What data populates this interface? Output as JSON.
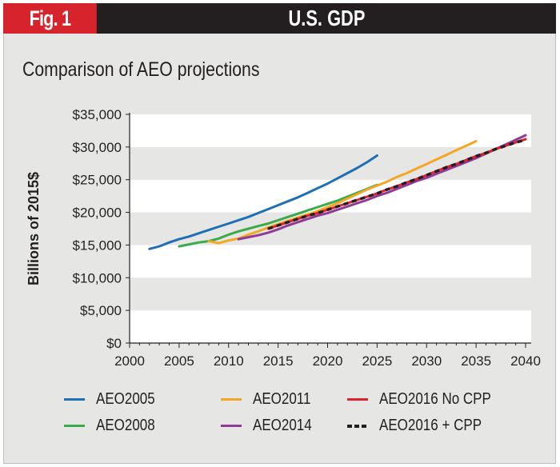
{
  "header": {
    "fig_label": "Fig. 1",
    "title": "U.S. GDP"
  },
  "chart_data": {
    "type": "line",
    "title": "U.S. GDP",
    "subtitle": "Comparison of AEO projections",
    "xlabel": "",
    "ylabel": "Billions of 2015$",
    "xlim": [
      2000,
      2040
    ],
    "ylim": [
      0,
      35000
    ],
    "xticks": [
      "2000",
      "2005",
      "2010",
      "2015",
      "2020",
      "2025",
      "2030",
      "2035",
      "2040"
    ],
    "yticks": [
      "$0",
      "$5,000",
      "$10,000",
      "$15,000",
      "$20,000",
      "$25,000",
      "$30,000",
      "$35,000"
    ],
    "grid": "alternating horizontal bands",
    "legend_position": "bottom",
    "series": [
      {
        "name": "AEO2005",
        "color": "#1f6fb4",
        "dash": false,
        "x": [
          2002,
          2003,
          2004,
          2005,
          2006,
          2007,
          2008,
          2009,
          2010,
          2011,
          2012,
          2013,
          2014,
          2015,
          2016,
          2017,
          2018,
          2019,
          2020,
          2021,
          2022,
          2023,
          2024,
          2025
        ],
        "values": [
          14400,
          14800,
          15400,
          15900,
          16300,
          16800,
          17300,
          17800,
          18300,
          18800,
          19300,
          19900,
          20500,
          21100,
          21700,
          22300,
          23000,
          23700,
          24400,
          25200,
          26000,
          26800,
          27700,
          28700
        ]
      },
      {
        "name": "AEO2008",
        "color": "#3aab4a",
        "dash": false,
        "x": [
          2005,
          2006,
          2007,
          2008,
          2009,
          2010,
          2011,
          2012,
          2013,
          2014,
          2015,
          2016,
          2017,
          2018,
          2019,
          2020,
          2021,
          2022,
          2023,
          2024,
          2025
        ],
        "values": [
          14800,
          15100,
          15400,
          15600,
          16000,
          16600,
          17100,
          17500,
          17900,
          18300,
          18800,
          19300,
          19800,
          20300,
          20800,
          21300,
          21800,
          22400,
          23000,
          23600,
          24200
        ]
      },
      {
        "name": "AEO2011",
        "color": "#f5a623",
        "dash": false,
        "x": [
          2008,
          2009,
          2010,
          2011,
          2012,
          2013,
          2014,
          2015,
          2016,
          2017,
          2018,
          2019,
          2020,
          2021,
          2022,
          2023,
          2024,
          2025,
          2026,
          2027,
          2028,
          2029,
          2030,
          2031,
          2032,
          2033,
          2034,
          2035
        ],
        "values": [
          15600,
          15300,
          15700,
          16000,
          16600,
          17100,
          17700,
          18200,
          18700,
          19200,
          19700,
          20200,
          20800,
          21400,
          22100,
          22800,
          23500,
          24100,
          24700,
          25400,
          26000,
          26700,
          27400,
          28100,
          28800,
          29500,
          30200,
          30900
        ]
      },
      {
        "name": "AEO2014",
        "color": "#8e3a96",
        "dash": false,
        "x": [
          2011,
          2012,
          2013,
          2014,
          2015,
          2016,
          2017,
          2018,
          2019,
          2020,
          2021,
          2022,
          2023,
          2024,
          2025,
          2026,
          2027,
          2028,
          2029,
          2030,
          2031,
          2032,
          2033,
          2034,
          2035,
          2036,
          2037,
          2038,
          2039,
          2040
        ],
        "values": [
          15900,
          16200,
          16500,
          16900,
          17400,
          18000,
          18500,
          19000,
          19500,
          19900,
          20400,
          20900,
          21400,
          21900,
          22500,
          23000,
          23600,
          24200,
          24800,
          25300,
          25900,
          26500,
          27100,
          27700,
          28300,
          29000,
          29700,
          30400,
          31100,
          31800
        ]
      },
      {
        "name": "AEO2016 No CPP",
        "color": "#e0202d",
        "dash": false,
        "x": [
          2014,
          2015,
          2016,
          2017,
          2018,
          2019,
          2020,
          2021,
          2022,
          2023,
          2024,
          2025,
          2026,
          2027,
          2028,
          2029,
          2030,
          2031,
          2032,
          2033,
          2034,
          2035,
          2036,
          2037,
          2038,
          2039,
          2040
        ],
        "values": [
          17500,
          18000,
          18500,
          19000,
          19500,
          19900,
          20400,
          20900,
          21400,
          21900,
          22400,
          22900,
          23500,
          24000,
          24600,
          25100,
          25700,
          26300,
          26900,
          27400,
          28000,
          28600,
          29100,
          29700,
          30200,
          30700,
          31200
        ]
      },
      {
        "name": "AEO2016 + CPP",
        "color": "#231f20",
        "dash": true,
        "x": [
          2014,
          2015,
          2016,
          2017,
          2018,
          2019,
          2020,
          2021,
          2022,
          2023,
          2024,
          2025,
          2026,
          2027,
          2028,
          2029,
          2030,
          2031,
          2032,
          2033,
          2034,
          2035,
          2036,
          2037,
          2038,
          2039,
          2040
        ],
        "values": [
          17500,
          18000,
          18500,
          19000,
          19500,
          19900,
          20400,
          20900,
          21400,
          21900,
          22400,
          22900,
          23500,
          24000,
          24600,
          25100,
          25700,
          26300,
          26900,
          27400,
          28000,
          28600,
          29100,
          29700,
          30200,
          30700,
          31100
        ]
      }
    ]
  },
  "legend": [
    {
      "label": "AEO2005",
      "color": "#1f6fb4",
      "dash": false
    },
    {
      "label": "AEO2011",
      "color": "#f5a623",
      "dash": false
    },
    {
      "label": "AEO2016 No CPP",
      "color": "#e0202d",
      "dash": false
    },
    {
      "label": "AEO2008",
      "color": "#3aab4a",
      "dash": false
    },
    {
      "label": "AEO2014",
      "color": "#8e3a96",
      "dash": false
    },
    {
      "label": "AEO2016 + CPP",
      "color": "#231f20",
      "dash": true
    }
  ]
}
